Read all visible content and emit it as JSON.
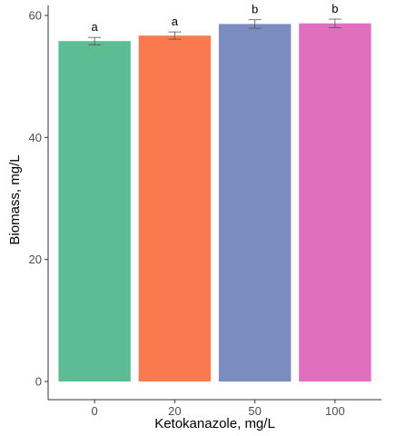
{
  "chart_data": {
    "type": "bar",
    "title": "",
    "xlabel": "Ketokanazole, mg/L",
    "ylabel": "Biomass, mg/L",
    "categories": [
      "0",
      "20",
      "50",
      "100"
    ],
    "values": [
      55.8,
      56.7,
      58.6,
      58.7
    ],
    "error": [
      0.6,
      0.6,
      0.7,
      0.7
    ],
    "significance": [
      "a",
      "a",
      "b",
      "b"
    ],
    "colors": [
      "#5BBD91",
      "#FA7A50",
      "#7A8CC0",
      "#E06FBE"
    ],
    "ylim": [
      0,
      61
    ],
    "yticks": [
      0,
      20,
      40,
      60
    ],
    "grid": false,
    "legend": "none"
  }
}
